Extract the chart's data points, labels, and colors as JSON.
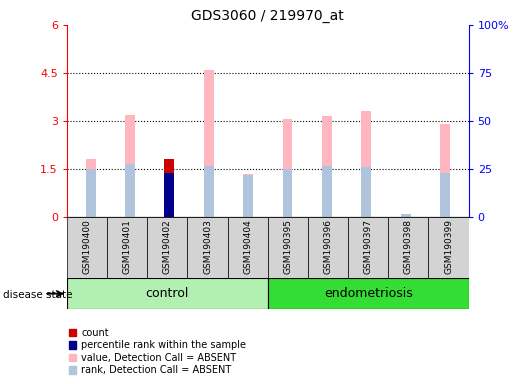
{
  "title": "GDS3060 / 219970_at",
  "samples": [
    "GSM190400",
    "GSM190401",
    "GSM190402",
    "GSM190403",
    "GSM190404",
    "GSM190395",
    "GSM190396",
    "GSM190397",
    "GSM190398",
    "GSM190399"
  ],
  "groups": [
    {
      "name": "control",
      "indices": [
        0,
        1,
        2,
        3,
        4
      ],
      "color": "#b2f0b2"
    },
    {
      "name": "endometriosis",
      "indices": [
        5,
        6,
        7,
        8,
        9
      ],
      "color": "#33dd33"
    }
  ],
  "value_absent": [
    1.8,
    3.2,
    0.0,
    4.6,
    1.35,
    3.05,
    3.15,
    3.3,
    0.0,
    2.9
  ],
  "rank_absent": [
    1.5,
    1.65,
    0.0,
    1.6,
    1.3,
    1.5,
    1.6,
    1.57,
    0.08,
    1.38
  ],
  "count": [
    0.0,
    0.0,
    1.8,
    0.0,
    0.0,
    0.0,
    0.0,
    0.0,
    0.0,
    0.0
  ],
  "percentile_rank": [
    0.0,
    0.0,
    1.38,
    0.0,
    0.0,
    0.0,
    0.0,
    0.0,
    0.0,
    0.0
  ],
  "ylim_left": [
    0,
    6
  ],
  "ylim_right": [
    0,
    100
  ],
  "yticks_left": [
    0,
    1.5,
    3,
    4.5,
    6
  ],
  "yticks_right": [
    0,
    25,
    50,
    75,
    100
  ],
  "ytick_labels_left": [
    "0",
    "1.5",
    "3",
    "4.5",
    "6"
  ],
  "ytick_labels_right": [
    "0",
    "25",
    "50",
    "75",
    "100%"
  ],
  "color_value_absent": "#ffb6c1",
  "color_rank_absent": "#b0c4de",
  "color_count": "#cc0000",
  "color_percentile": "#00008b",
  "bar_width": 0.25,
  "figsize": [
    5.15,
    3.84
  ],
  "dpi": 100
}
